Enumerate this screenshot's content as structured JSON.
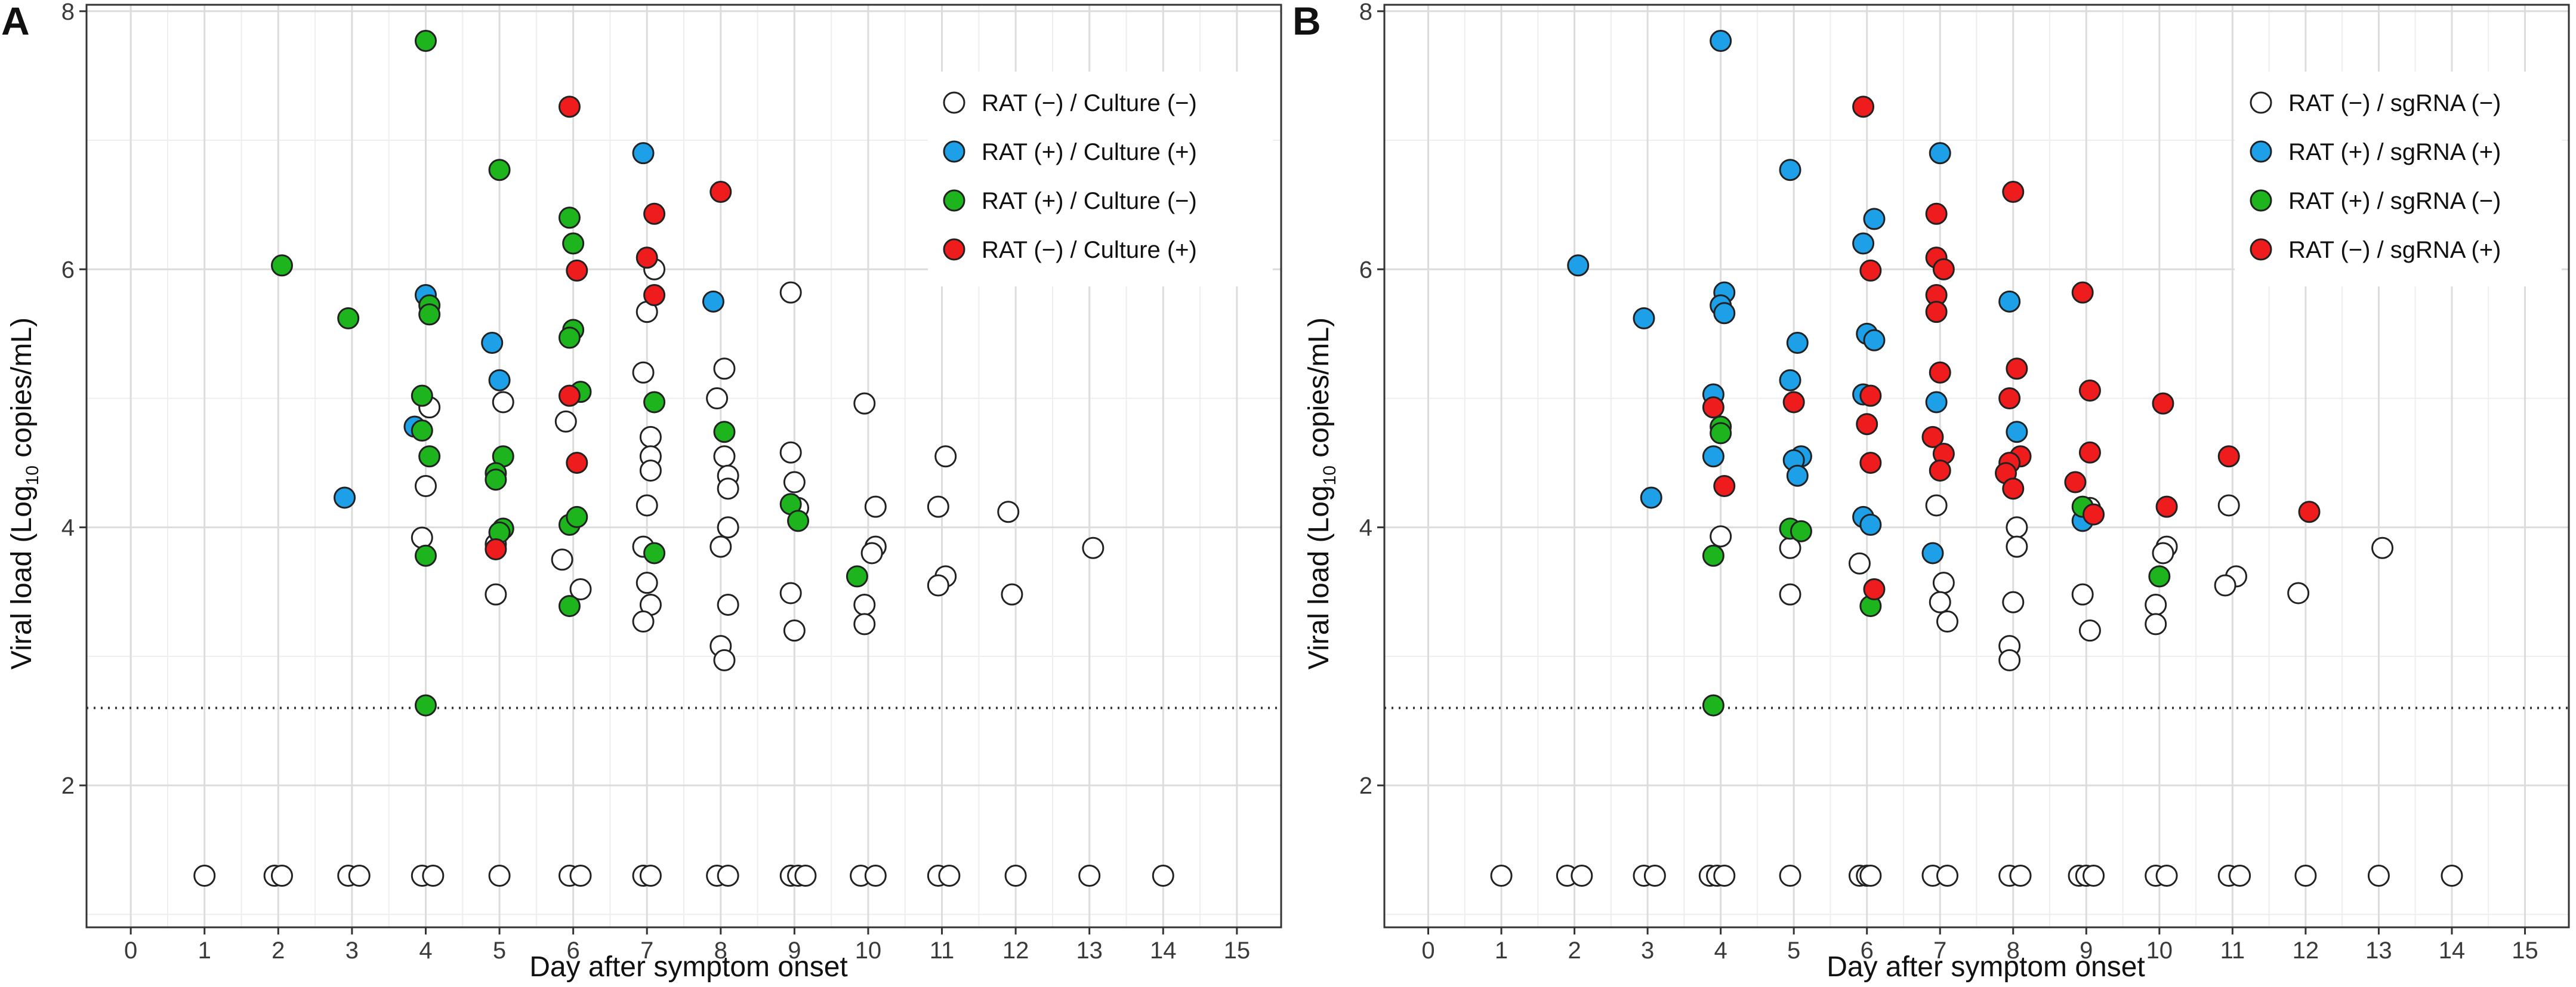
{
  "xlabel": "Day after symptom onset",
  "ylabel_prefix": "Viral load (Log",
  "ylabel_sub": "10",
  "ylabel_suffix": " copies/mL)",
  "colors": {
    "negneg": "#ffffff",
    "pospos": "#1ea0e8",
    "posneg": "#1eb41e",
    "negpos": "#ee1c1c",
    "marker_edge": "#222222",
    "grid_major": "#dcdcdc",
    "grid_minor": "#eeeeee",
    "frame": "#333333"
  },
  "chart_data": [
    {
      "panel": "A",
      "type": "scatter",
      "xlabel": "Day after symptom onset",
      "ylabel": "Viral load (Log10 copies/mL)",
      "xlim": [
        -0.6,
        15.6
      ],
      "ylim": [
        0.9,
        8.05
      ],
      "x_ticks": [
        "0",
        "1",
        "2",
        "3",
        "4",
        "5",
        "6",
        "7",
        "8",
        "9",
        "10",
        "11",
        "12",
        "13",
        "14",
        "15"
      ],
      "y_ticks": [
        "2",
        "4",
        "6",
        "8"
      ],
      "detection_limit_y": 2.6,
      "legend_position": "top-right",
      "series": [
        {
          "key": "negneg",
          "name": "RAT (−) / Culture (−)",
          "points": [
            [
              1,
              1.3
            ],
            [
              1.95,
              1.3
            ],
            [
              2.05,
              1.3
            ],
            [
              2.95,
              1.3
            ],
            [
              3.1,
              1.3
            ],
            [
              3.95,
              1.3
            ],
            [
              4.1,
              1.3
            ],
            [
              5,
              1.3
            ],
            [
              5.95,
              1.3
            ],
            [
              6.1,
              1.3
            ],
            [
              6.95,
              1.3
            ],
            [
              7.05,
              1.3
            ],
            [
              7.95,
              1.3
            ],
            [
              8.1,
              1.3
            ],
            [
              8.95,
              1.3
            ],
            [
              9.05,
              1.3
            ],
            [
              9.15,
              1.3
            ],
            [
              9.9,
              1.3
            ],
            [
              10.1,
              1.3
            ],
            [
              10.95,
              1.3
            ],
            [
              11.1,
              1.3
            ],
            [
              12,
              1.3
            ],
            [
              13,
              1.3
            ],
            [
              14,
              1.3
            ],
            [
              4.05,
              4.93
            ],
            [
              4,
              4.32
            ],
            [
              3.95,
              3.92
            ],
            [
              5.05,
              4.97
            ],
            [
              4.95,
              3.87
            ],
            [
              4.95,
              3.48
            ],
            [
              5.9,
              4.82
            ],
            [
              5.85,
              3.75
            ],
            [
              6.1,
              3.52
            ],
            [
              7.1,
              6.0
            ],
            [
              7.0,
              5.67
            ],
            [
              6.95,
              5.2
            ],
            [
              7.05,
              4.7
            ],
            [
              7.05,
              4.55
            ],
            [
              7.05,
              4.44
            ],
            [
              7.0,
              4.17
            ],
            [
              6.95,
              3.85
            ],
            [
              7.0,
              3.57
            ],
            [
              7.05,
              3.4
            ],
            [
              6.95,
              3.27
            ],
            [
              8.05,
              5.23
            ],
            [
              7.95,
              5.0
            ],
            [
              8.05,
              4.55
            ],
            [
              8.1,
              4.4
            ],
            [
              8.1,
              4.3
            ],
            [
              8.1,
              4.0
            ],
            [
              8.0,
              3.85
            ],
            [
              8.1,
              3.4
            ],
            [
              8.0,
              3.08
            ],
            [
              8.05,
              2.97
            ],
            [
              8.95,
              5.82
            ],
            [
              8.95,
              4.58
            ],
            [
              9.0,
              4.35
            ],
            [
              9.05,
              4.15
            ],
            [
              8.95,
              3.49
            ],
            [
              9.0,
              3.2
            ],
            [
              9.95,
              4.96
            ],
            [
              10.1,
              4.16
            ],
            [
              10.1,
              3.85
            ],
            [
              10.05,
              3.8
            ],
            [
              9.95,
              3.4
            ],
            [
              9.95,
              3.25
            ],
            [
              11.05,
              4.55
            ],
            [
              10.95,
              4.16
            ],
            [
              11.05,
              3.62
            ],
            [
              10.95,
              3.55
            ],
            [
              11.9,
              4.12
            ],
            [
              11.95,
              3.48
            ],
            [
              13.05,
              3.84
            ]
          ]
        },
        {
          "key": "pospos",
          "name": "RAT (+) / Culture (+)",
          "points": [
            [
              2.9,
              4.23
            ],
            [
              3.85,
              4.78
            ],
            [
              4.0,
              5.8
            ],
            [
              4.9,
              5.43
            ],
            [
              5.0,
              5.14
            ],
            [
              6.95,
              6.9
            ],
            [
              7.9,
              5.75
            ]
          ]
        },
        {
          "key": "posneg",
          "name": "RAT (+) / Culture (−)",
          "points": [
            [
              2.05,
              6.03
            ],
            [
              2.95,
              5.62
            ],
            [
              4.0,
              7.77
            ],
            [
              4.05,
              5.72
            ],
            [
              4.05,
              5.65
            ],
            [
              3.95,
              5.02
            ],
            [
              3.95,
              4.75
            ],
            [
              4.05,
              4.55
            ],
            [
              4.0,
              3.78
            ],
            [
              4.0,
              2.62
            ],
            [
              5.0,
              6.77
            ],
            [
              5.05,
              4.55
            ],
            [
              4.95,
              4.42
            ],
            [
              4.95,
              4.37
            ],
            [
              5.05,
              3.99
            ],
            [
              5.0,
              3.96
            ],
            [
              5.95,
              6.4
            ],
            [
              6.0,
              6.2
            ],
            [
              6.0,
              5.53
            ],
            [
              5.95,
              5.47
            ],
            [
              6.1,
              5.05
            ],
            [
              5.95,
              4.02
            ],
            [
              6.05,
              4.08
            ],
            [
              5.95,
              3.39
            ],
            [
              7.1,
              4.97
            ],
            [
              7.1,
              3.8
            ],
            [
              8.05,
              4.74
            ],
            [
              8.95,
              4.18
            ],
            [
              9.05,
              4.05
            ],
            [
              9.85,
              3.62
            ]
          ]
        },
        {
          "key": "negpos",
          "name": "RAT (−) / Culture (+)",
          "points": [
            [
              5.95,
              7.26
            ],
            [
              6.05,
              5.99
            ],
            [
              6.05,
              4.5
            ],
            [
              5.95,
              5.02
            ],
            [
              4.95,
              3.83
            ],
            [
              7.1,
              6.43
            ],
            [
              7.0,
              6.09
            ],
            [
              7.1,
              5.8
            ],
            [
              8.0,
              6.6
            ]
          ]
        }
      ]
    },
    {
      "panel": "B",
      "type": "scatter",
      "xlabel": "Day after symptom onset",
      "ylabel": "Viral load (Log10 copies/mL)",
      "xlim": [
        -0.6,
        15.6
      ],
      "ylim": [
        0.9,
        8.05
      ],
      "x_ticks": [
        "0",
        "1",
        "2",
        "3",
        "4",
        "5",
        "6",
        "7",
        "8",
        "9",
        "10",
        "11",
        "12",
        "13",
        "14",
        "15"
      ],
      "y_ticks": [
        "2",
        "4",
        "6",
        "8"
      ],
      "detection_limit_y": 2.6,
      "legend_position": "top-right",
      "series": [
        {
          "key": "negneg",
          "name": "RAT (−) / sgRNA (−)",
          "points": [
            [
              1,
              1.3
            ],
            [
              1.9,
              1.3
            ],
            [
              2.1,
              1.3
            ],
            [
              2.95,
              1.3
            ],
            [
              3.1,
              1.3
            ],
            [
              3.85,
              1.3
            ],
            [
              3.95,
              1.3
            ],
            [
              4.05,
              1.3
            ],
            [
              4.95,
              1.3
            ],
            [
              5.9,
              1.3
            ],
            [
              6.0,
              1.3
            ],
            [
              6.05,
              1.3
            ],
            [
              6.9,
              1.3
            ],
            [
              7.1,
              1.3
            ],
            [
              7.95,
              1.3
            ],
            [
              8.1,
              1.3
            ],
            [
              8.9,
              1.3
            ],
            [
              9.0,
              1.3
            ],
            [
              9.1,
              1.3
            ],
            [
              9.95,
              1.3
            ],
            [
              10.1,
              1.3
            ],
            [
              10.95,
              1.3
            ],
            [
              11.1,
              1.3
            ],
            [
              12.0,
              1.3
            ],
            [
              13.0,
              1.3
            ],
            [
              14.0,
              1.3
            ],
            [
              4.0,
              3.93
            ],
            [
              4.95,
              3.84
            ],
            [
              4.95,
              3.48
            ],
            [
              5.9,
              3.72
            ],
            [
              6.95,
              4.17
            ],
            [
              7.05,
              3.57
            ],
            [
              7.0,
              3.42
            ],
            [
              7.1,
              3.27
            ],
            [
              8.05,
              4.0
            ],
            [
              8.05,
              3.85
            ],
            [
              8.0,
              3.42
            ],
            [
              7.95,
              3.08
            ],
            [
              7.95,
              2.97
            ],
            [
              9.05,
              4.15
            ],
            [
              8.95,
              3.48
            ],
            [
              9.05,
              3.2
            ],
            [
              10.1,
              3.85
            ],
            [
              10.05,
              3.8
            ],
            [
              9.95,
              3.4
            ],
            [
              9.95,
              3.25
            ],
            [
              10.95,
              4.17
            ],
            [
              11.05,
              3.62
            ],
            [
              10.9,
              3.55
            ],
            [
              11.9,
              3.49
            ],
            [
              13.05,
              3.84
            ]
          ]
        },
        {
          "key": "pospos",
          "name": "RAT (+) / sgRNA (+)",
          "points": [
            [
              2.05,
              6.03
            ],
            [
              2.95,
              5.62
            ],
            [
              3.05,
              4.23
            ],
            [
              4.0,
              7.77
            ],
            [
              4.05,
              5.82
            ],
            [
              4.0,
              5.72
            ],
            [
              4.05,
              5.66
            ],
            [
              3.9,
              5.03
            ],
            [
              3.9,
              4.55
            ],
            [
              5.05,
              5.43
            ],
            [
              4.95,
              5.14
            ],
            [
              4.95,
              6.77
            ],
            [
              5.1,
              4.55
            ],
            [
              5.0,
              4.52
            ],
            [
              5.05,
              4.4
            ],
            [
              5.95,
              6.2
            ],
            [
              6.1,
              6.39
            ],
            [
              6.0,
              5.5
            ],
            [
              6.1,
              5.45
            ],
            [
              5.95,
              5.03
            ],
            [
              5.95,
              4.08
            ],
            [
              6.05,
              4.02
            ],
            [
              7.0,
              6.9
            ],
            [
              6.95,
              4.97
            ],
            [
              6.9,
              3.8
            ],
            [
              7.95,
              5.75
            ],
            [
              8.05,
              4.74
            ],
            [
              8.95,
              4.05
            ]
          ]
        },
        {
          "key": "posneg",
          "name": "RAT (+) / sgRNA (−)",
          "points": [
            [
              4.0,
              4.78
            ],
            [
              4.0,
              4.73
            ],
            [
              3.9,
              3.78
            ],
            [
              3.9,
              2.62
            ],
            [
              4.95,
              3.99
            ],
            [
              5.1,
              3.97
            ],
            [
              6.05,
              3.39
            ],
            [
              8.95,
              4.16
            ],
            [
              10.0,
              3.62
            ]
          ]
        },
        {
          "key": "negpos",
          "name": "RAT (−) / sgRNA (+)",
          "points": [
            [
              3.9,
              4.93
            ],
            [
              4.05,
              4.32
            ],
            [
              5.0,
              4.97
            ],
            [
              5.95,
              7.26
            ],
            [
              6.05,
              5.99
            ],
            [
              6.05,
              5.02
            ],
            [
              6.0,
              4.8
            ],
            [
              6.05,
              4.5
            ],
            [
              6.1,
              3.52
            ],
            [
              6.95,
              6.43
            ],
            [
              6.95,
              6.09
            ],
            [
              7.05,
              6.0
            ],
            [
              6.95,
              5.8
            ],
            [
              6.95,
              5.67
            ],
            [
              7.0,
              5.2
            ],
            [
              6.9,
              4.7
            ],
            [
              7.05,
              4.57
            ],
            [
              7.0,
              4.44
            ],
            [
              8.0,
              6.6
            ],
            [
              8.05,
              5.23
            ],
            [
              7.95,
              5.0
            ],
            [
              8.1,
              4.55
            ],
            [
              7.95,
              4.5
            ],
            [
              7.9,
              4.42
            ],
            [
              8.0,
              4.3
            ],
            [
              8.95,
              5.82
            ],
            [
              9.05,
              5.06
            ],
            [
              9.05,
              4.58
            ],
            [
              8.85,
              4.35
            ],
            [
              9.1,
              4.1
            ],
            [
              10.05,
              4.96
            ],
            [
              10.1,
              4.16
            ],
            [
              10.95,
              4.55
            ],
            [
              12.05,
              4.12
            ]
          ]
        }
      ]
    }
  ]
}
